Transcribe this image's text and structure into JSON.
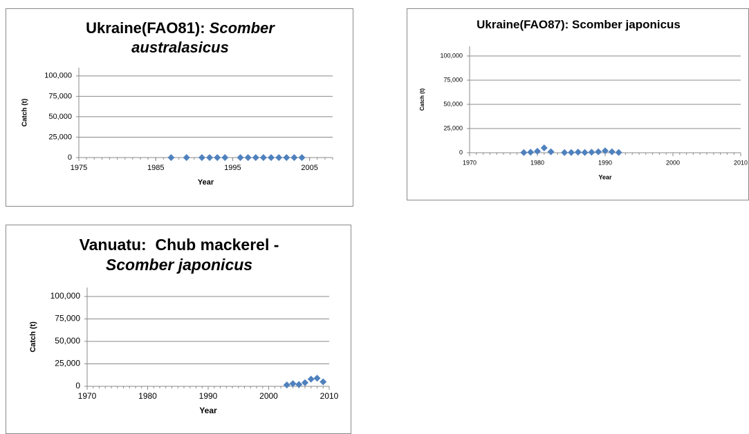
{
  "chart_data": [
    {
      "type": "scatter",
      "title": [
        "Ukraine(FAO81): ",
        "Scomber australasicus"
      ],
      "title_italic": [
        false,
        true
      ],
      "xlabel": "Year",
      "ylabel": "Catch (t)",
      "color": "#4f81bd",
      "grid": true,
      "x": [
        1987,
        1989,
        1991,
        1992,
        1993,
        1994,
        1996,
        1997,
        1998,
        1999,
        2000,
        2001,
        2002,
        2003,
        2004
      ],
      "values": [
        0,
        0,
        0,
        0,
        0,
        0,
        0,
        0,
        0,
        0,
        0,
        0,
        0,
        0,
        0
      ],
      "xlim": [
        1975,
        2008
      ],
      "xticks": [
        1975,
        1985,
        1995,
        2005
      ],
      "ylim": [
        0,
        110000
      ],
      "yticks": [
        0,
        {
          "value": 25000,
          "label": "25,000"
        },
        {
          "value": 50000,
          "label": "50,000"
        },
        {
          "value": 75000,
          "label": "75,000"
        },
        {
          "value": 100000,
          "label": "100,000"
        }
      ]
    },
    {
      "type": "scatter",
      "title": [
        "Ukraine(FAO87): Scomber japonicus"
      ],
      "title_italic": [
        false
      ],
      "xlabel": "Year",
      "ylabel": "Catch (t)",
      "color": "#4f81bd",
      "grid": true,
      "x": [
        1978,
        1979,
        1980,
        1981,
        1982,
        1984,
        1985,
        1986,
        1987,
        1988,
        1989,
        1990,
        1991,
        1992
      ],
      "values": [
        200,
        500,
        1500,
        5000,
        1000,
        200,
        300,
        600,
        300,
        500,
        1000,
        2000,
        1000,
        300
      ],
      "xlim": [
        1970,
        2010
      ],
      "xticks": [
        1970,
        1980,
        1990,
        2000,
        2010
      ],
      "ylim": [
        0,
        110000
      ],
      "yticks": [
        0,
        {
          "value": 25000,
          "label": "25,000"
        },
        {
          "value": 50000,
          "label": "50,000"
        },
        {
          "value": 75000,
          "label": "75,000"
        },
        {
          "value": 100000,
          "label": "100,000"
        }
      ]
    },
    {
      "type": "scatter",
      "title": [
        "Vanuatu:  Chub mackerel - ",
        "Scomber japonicus"
      ],
      "title_italic": [
        false,
        true
      ],
      "xlabel": "Year",
      "ylabel": "Catch (t)",
      "color": "#4f81bd",
      "grid": true,
      "x": [
        2003,
        2004,
        2005,
        2006,
        2007,
        2008,
        2009
      ],
      "values": [
        1500,
        3000,
        2000,
        4000,
        8000,
        9000,
        5000
      ],
      "xlim": [
        1970,
        2010
      ],
      "xticks": [
        1970,
        1980,
        1990,
        2000,
        2010
      ],
      "ylim": [
        0,
        110000
      ],
      "yticks": [
        0,
        {
          "value": 25000,
          "label": "25,000"
        },
        {
          "value": 50000,
          "label": "50,000"
        },
        {
          "value": 75000,
          "label": "75,000"
        },
        {
          "value": 100000,
          "label": "100,000"
        }
      ]
    }
  ]
}
